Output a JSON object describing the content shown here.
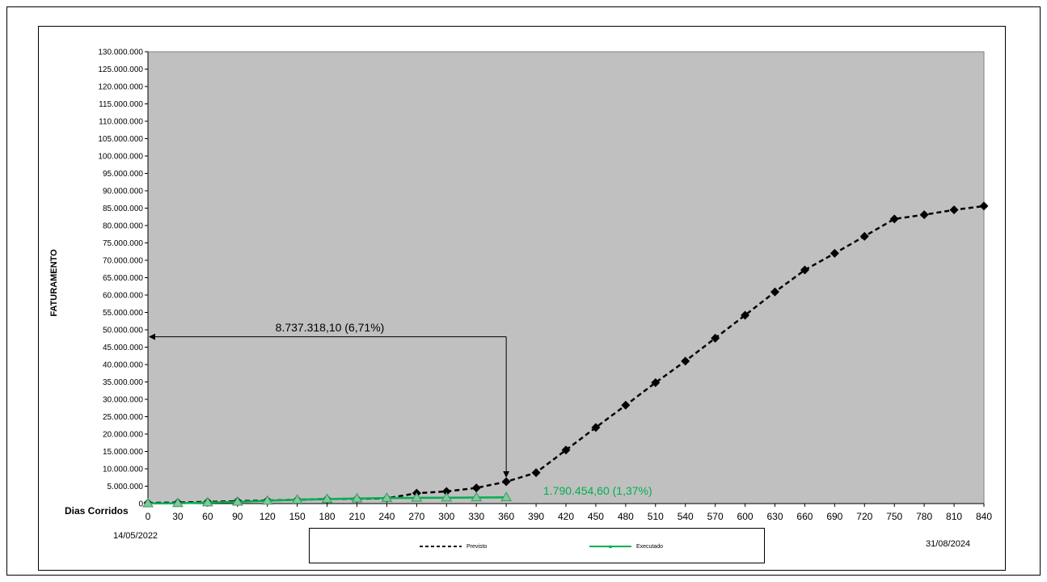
{
  "chart_data": {
    "type": "line",
    "ylabel": "FATURAMENTO",
    "xlabel": "Dias Corridos",
    "x": [
      0,
      30,
      60,
      90,
      120,
      150,
      180,
      210,
      240,
      270,
      300,
      330,
      360,
      390,
      420,
      450,
      480,
      510,
      540,
      570,
      600,
      630,
      660,
      690,
      720,
      750,
      780,
      810,
      840
    ],
    "x_tick_labels": [
      "0",
      "30",
      "60",
      "90",
      "120",
      "150",
      "180",
      "210",
      "240",
      "270",
      "300",
      "330",
      "360",
      "390",
      "420",
      "450",
      "480",
      "510",
      "540",
      "570",
      "600",
      "630",
      "660",
      "690",
      "720",
      "750",
      "780",
      "810",
      "840"
    ],
    "ylim": [
      0,
      130000000
    ],
    "y_ticks": [
      0,
      5000000,
      10000000,
      15000000,
      20000000,
      25000000,
      30000000,
      35000000,
      40000000,
      45000000,
      50000000,
      55000000,
      60000000,
      65000000,
      70000000,
      75000000,
      80000000,
      85000000,
      90000000,
      95000000,
      100000000,
      105000000,
      110000000,
      115000000,
      120000000,
      125000000,
      130000000
    ],
    "y_tick_labels": [
      "0",
      "5.000.000",
      "10.000.000",
      "15.000.000",
      "20.000.000",
      "25.000.000",
      "30.000.000",
      "35.000.000",
      "40.000.000",
      "45.000.000",
      "50.000.000",
      "55.000.000",
      "60.000.000",
      "65.000.000",
      "70.000.000",
      "75.000.000",
      "80.000.000",
      "85.000.000",
      "90.000.000",
      "95.000.000",
      "100.000.000",
      "105.000.000",
      "110.000.000",
      "115.000.000",
      "120.000.000",
      "125.000.000",
      "130.000.000"
    ],
    "series": [
      {
        "name": "Previsto",
        "color": "#000000",
        "style": "dashed",
        "marker": "diamond",
        "x": [
          0,
          30,
          60,
          90,
          120,
          150,
          180,
          210,
          240,
          270,
          300,
          330,
          360,
          390,
          420,
          450,
          480,
          510,
          540,
          570,
          600,
          630,
          660,
          690,
          720,
          750,
          780,
          810,
          840
        ],
        "values": [
          200000,
          300000,
          500000,
          700000,
          900000,
          1100000,
          1300000,
          1400000,
          1500000,
          3000000,
          3500000,
          4500000,
          6300000,
          8900000,
          15400000,
          21900000,
          28300000,
          34800000,
          41000000,
          47600000,
          54200000,
          60900000,
          67200000,
          72000000,
          76900000,
          81900000,
          83100000,
          84500000,
          85600000
        ]
      },
      {
        "name": "Executado",
        "color": "#00b050",
        "style": "solid",
        "marker": "triangle",
        "x": [
          0,
          30,
          60,
          90,
          120,
          150,
          180,
          210,
          240,
          270,
          300,
          330,
          360
        ],
        "values": [
          50000,
          100000,
          300000,
          500000,
          800000,
          1100000,
          1300000,
          1450000,
          1600000,
          1650000,
          1700000,
          1750000,
          1790454.6
        ]
      }
    ],
    "annotations": [
      {
        "text": "8.737.318,10 (6,71%)",
        "color": "#000000"
      },
      {
        "text": "1.790.454,60 (1,37%)",
        "color": "#00b050"
      }
    ],
    "start_date": "14/05/2022",
    "end_date": "31/08/2024",
    "grid": false,
    "plot_background": "#c0c0c0",
    "legend_position": "bottom"
  }
}
